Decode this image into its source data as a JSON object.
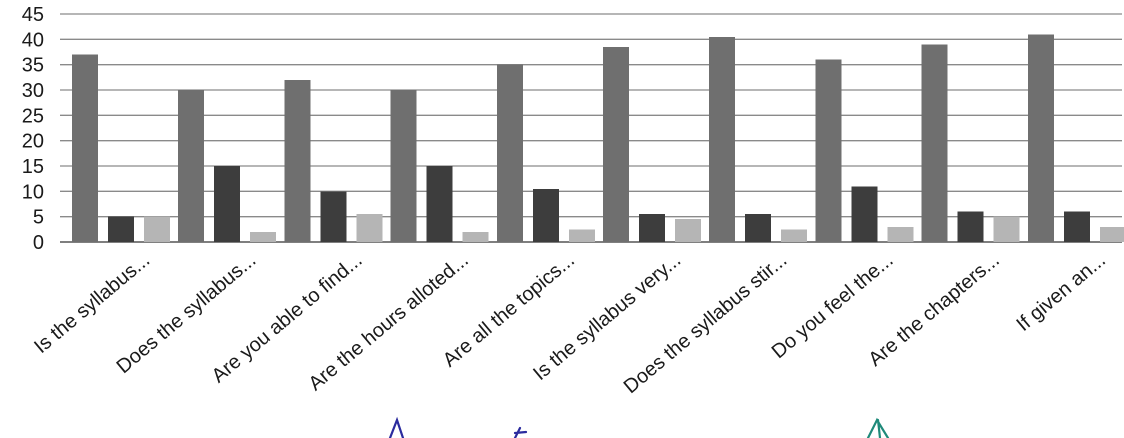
{
  "chart_data": {
    "type": "bar",
    "title": "",
    "xlabel": "",
    "ylabel": "",
    "ylim": [
      0,
      45
    ],
    "yticks": [
      0,
      5,
      10,
      15,
      20,
      25,
      30,
      35,
      40,
      45
    ],
    "grid": true,
    "legend": "none",
    "categories": [
      "Is the syllabus...",
      "Does the syllabus...",
      "Are you able to find...",
      "Are the hours alloted...",
      "Are all the topics...",
      "Is the syllabus very...",
      "Does the syllabus stir...",
      "Do you feel the...",
      "Are the chapters...",
      "If given an..."
    ],
    "series": [
      {
        "values": [
          37,
          30,
          32,
          30,
          35,
          38.5,
          40.5,
          36,
          39,
          41
        ],
        "color": "#6f6f6f"
      },
      {
        "values": [
          5,
          15,
          10,
          15,
          10.5,
          5.5,
          5.5,
          11,
          6,
          6
        ],
        "color": "#3d3d3d"
      },
      {
        "values": [
          5,
          2,
          5.5,
          2,
          2.5,
          4.5,
          2.5,
          3,
          5,
          3
        ],
        "color": "#b5b5b5"
      }
    ],
    "annotations": {
      "handwritten_marks": [
        "blue-ink-arrow",
        "green-ink-arrow"
      ]
    }
  }
}
